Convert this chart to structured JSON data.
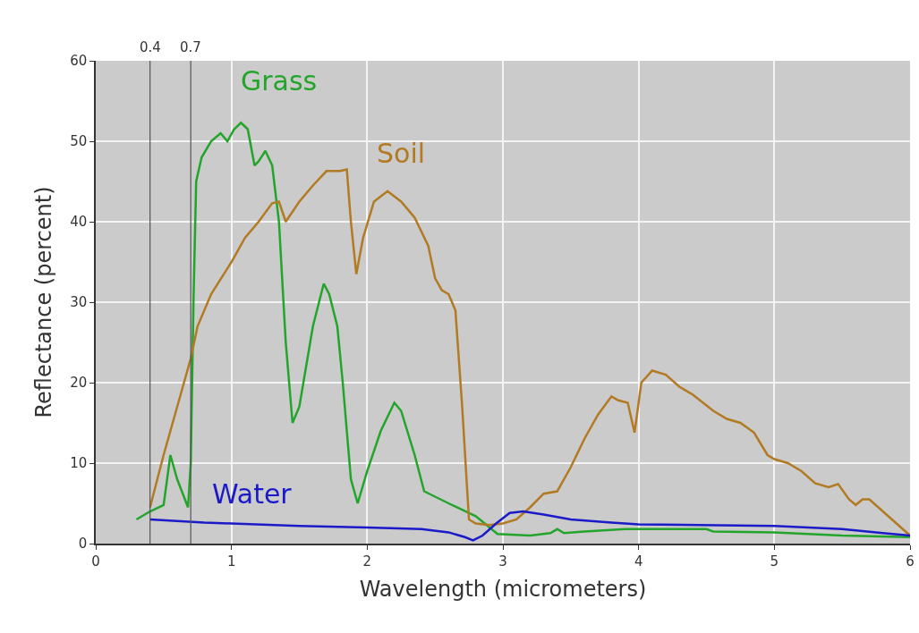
{
  "chart_data": {
    "type": "line",
    "xlabel": "Wavelength (micrometers)",
    "ylabel": "Reflectance (percent)",
    "xlim": [
      0,
      6
    ],
    "xticks": [
      0,
      1,
      2,
      3,
      4,
      5,
      6
    ],
    "ylim": [
      0,
      60
    ],
    "yticks": [
      0,
      10,
      20,
      30,
      40,
      50,
      60
    ],
    "grid": true,
    "legend": false,
    "marker": "none",
    "line_style": "solid",
    "ref_lines": [
      {
        "axis": "x",
        "value": 0.4,
        "label": "0.4",
        "color": "#555555"
      },
      {
        "axis": "x",
        "value": 0.7,
        "label": "0.7",
        "color": "#555555"
      }
    ],
    "series": [
      {
        "name": "Grass",
        "color": "#22a52a",
        "x": [
          0.3,
          0.4,
          0.5,
          0.55,
          0.6,
          0.68,
          0.7,
          0.72,
          0.74,
          0.78,
          0.85,
          0.92,
          0.97,
          1.02,
          1.07,
          1.12,
          1.17,
          1.2,
          1.25,
          1.3,
          1.35,
          1.4,
          1.45,
          1.5,
          1.6,
          1.68,
          1.72,
          1.78,
          1.82,
          1.88,
          1.93,
          2.0,
          2.1,
          2.2,
          2.25,
          2.35,
          2.42,
          2.6,
          2.8,
          2.96,
          3.2,
          3.35,
          3.4,
          3.45,
          3.6,
          3.9,
          4.5,
          4.55,
          5.0,
          5.5,
          6.0
        ],
        "values": [
          3.0,
          4.0,
          4.8,
          11,
          8,
          4.5,
          10,
          30,
          45,
          48,
          50,
          51,
          50,
          51.5,
          52.3,
          51.5,
          47,
          47.5,
          48.8,
          47,
          40,
          25,
          15,
          17,
          27,
          32.3,
          31,
          27,
          20,
          8,
          5,
          9,
          14,
          17.5,
          16.5,
          11,
          6.5,
          5,
          3.4,
          1.2,
          1.0,
          1.3,
          1.8,
          1.3,
          1.5,
          1.8,
          1.8,
          1.5,
          1.4,
          1.0,
          0.8
        ]
      },
      {
        "name": "Soil",
        "color": "#b27a22",
        "x": [
          0.4,
          0.5,
          0.6,
          0.7,
          0.75,
          0.85,
          1.0,
          1.1,
          1.2,
          1.3,
          1.35,
          1.4,
          1.5,
          1.6,
          1.7,
          1.8,
          1.85,
          1.88,
          1.92,
          1.97,
          2.05,
          2.15,
          2.25,
          2.35,
          2.45,
          2.5,
          2.55,
          2.6,
          2.65,
          2.7,
          2.75,
          2.8,
          2.9,
          3.0,
          3.1,
          3.2,
          3.3,
          3.4,
          3.5,
          3.6,
          3.7,
          3.8,
          3.85,
          3.92,
          3.97,
          4.02,
          4.1,
          4.2,
          4.3,
          4.4,
          4.55,
          4.65,
          4.75,
          4.85,
          4.95,
          5.0,
          5.1,
          5.2,
          5.3,
          5.4,
          5.47,
          5.55,
          5.6,
          5.65,
          5.7,
          5.8,
          6.0
        ],
        "values": [
          4.5,
          11,
          17,
          23,
          27,
          31,
          35,
          38,
          40,
          42.3,
          42.5,
          40,
          42.5,
          44.5,
          46.3,
          46.3,
          46.5,
          40,
          33.5,
          38,
          42.5,
          43.8,
          42.5,
          40.5,
          37,
          33,
          31.5,
          31,
          29,
          17,
          3,
          2.5,
          2.3,
          2.5,
          3,
          4.5,
          6.2,
          6.5,
          9.5,
          13,
          16,
          18.3,
          17.8,
          17.5,
          13.8,
          20,
          21.5,
          21,
          19.5,
          18.5,
          16.5,
          15.5,
          15,
          13.8,
          11,
          10.5,
          10,
          9,
          7.5,
          7,
          7.4,
          5.5,
          4.8,
          5.5,
          5.5,
          4,
          1.0
        ]
      },
      {
        "name": "Water",
        "color": "#1a1ac8",
        "x": [
          0.4,
          0.6,
          0.8,
          1.0,
          1.5,
          2.0,
          2.4,
          2.6,
          2.72,
          2.78,
          2.85,
          2.95,
          3.05,
          3.15,
          3.3,
          3.5,
          3.8,
          4.0,
          5.0,
          5.5,
          5.8,
          6.0
        ],
        "values": [
          3.0,
          2.8,
          2.6,
          2.5,
          2.2,
          2.0,
          1.8,
          1.4,
          0.8,
          0.4,
          1.0,
          2.5,
          3.8,
          4.0,
          3.6,
          3.0,
          2.6,
          2.4,
          2.2,
          1.8,
          1.3,
          1.0
        ]
      }
    ]
  }
}
